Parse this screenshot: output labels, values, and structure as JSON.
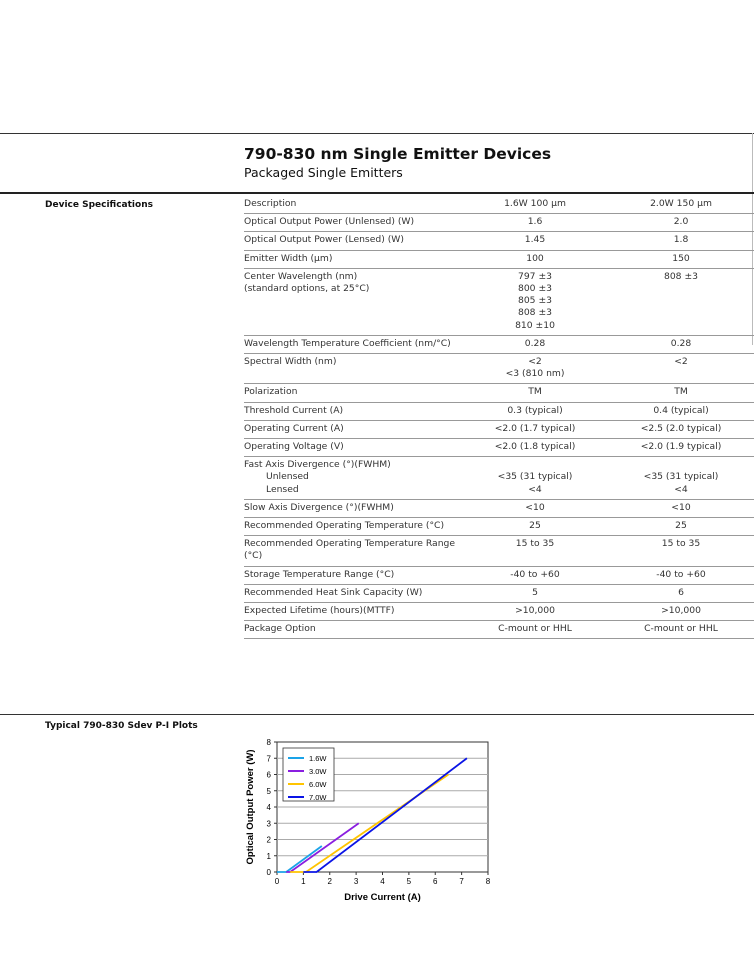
{
  "header": {
    "title": "790-830 nm Single Emitter Devices",
    "subtitle": "Packaged Single Emitters"
  },
  "specs": {
    "section_label": "Device Specifications",
    "rows": [
      {
        "label": [
          "Description"
        ],
        "v1": [
          "1.6W 100 µm"
        ],
        "v2": [
          "2.0W 150 µm"
        ]
      },
      {
        "label": [
          "Optical Output Power (Unlensed) (W)"
        ],
        "v1": [
          "1.6"
        ],
        "v2": [
          "2.0"
        ]
      },
      {
        "label": [
          "Optical Output Power (Lensed) (W)"
        ],
        "v1": [
          "1.45"
        ],
        "v2": [
          "1.8"
        ]
      },
      {
        "label": [
          "Emitter Width (µm)"
        ],
        "v1": [
          "100"
        ],
        "v2": [
          "150"
        ]
      },
      {
        "label": [
          "Center Wavelength (nm)",
          "(standard options, at 25°C)"
        ],
        "v1": [
          "797 ±3",
          "800 ±3",
          "805 ±3",
          "808 ±3",
          "810 ±10"
        ],
        "v2": [
          "808 ±3"
        ]
      },
      {
        "label": [
          "Wavelength Temperature Coefficient (nm/°C)"
        ],
        "v1": [
          "0.28"
        ],
        "v2": [
          "0.28"
        ]
      },
      {
        "label": [
          "Spectral Width (nm)"
        ],
        "v1": [
          "<2",
          "<3 (810 nm)"
        ],
        "v2": [
          "<2"
        ]
      },
      {
        "label": [
          "Polarization"
        ],
        "v1": [
          "TM"
        ],
        "v2": [
          "TM"
        ]
      },
      {
        "label": [
          "Threshold Current (A)"
        ],
        "v1": [
          "0.3 (typical)"
        ],
        "v2": [
          "0.4 (typical)"
        ]
      },
      {
        "label": [
          "Operating Current (A)"
        ],
        "v1": [
          "<2.0 (1.7 typical)"
        ],
        "v2": [
          "<2.5 (2.0 typical)"
        ]
      },
      {
        "label": [
          "Operating Voltage (V)"
        ],
        "v1": [
          "<2.0 (1.8 typical)"
        ],
        "v2": [
          "<2.0 (1.9 typical)"
        ]
      },
      {
        "label": [
          "Fast Axis Divergence (°)(FWHM)",
          "Unlensed",
          "Lensed"
        ],
        "v1": [
          "",
          "<35 (31 typical)",
          "<4"
        ],
        "v2": [
          "",
          "<35 (31 typical)",
          "<4"
        ]
      },
      {
        "label": [
          "Slow Axis Divergence (°)(FWHM)"
        ],
        "v1": [
          "<10"
        ],
        "v2": [
          "<10"
        ]
      },
      {
        "label": [
          "Recommended Operating Temperature (°C)"
        ],
        "v1": [
          "25"
        ],
        "v2": [
          "25"
        ]
      },
      {
        "label": [
          "Recommended Operating Temperature Range (°C)"
        ],
        "v1": [
          "15 to 35"
        ],
        "v2": [
          "15 to 35"
        ]
      },
      {
        "label": [
          "Storage Temperature Range (°C)"
        ],
        "v1": [
          "-40 to +60"
        ],
        "v2": [
          "-40 to +60"
        ]
      },
      {
        "label": [
          "Recommended Heat Sink Capacity (W)"
        ],
        "v1": [
          "5"
        ],
        "v2": [
          "6"
        ]
      },
      {
        "label": [
          "Expected Lifetime (hours)(MTTF)"
        ],
        "v1": [
          ">10,000"
        ],
        "v2": [
          ">10,000"
        ]
      },
      {
        "label": [
          "Package Option"
        ],
        "v1": [
          "C-mount or HHL"
        ],
        "v2": [
          "C-mount or HHL"
        ]
      }
    ]
  },
  "plots": {
    "section_label": "Typical 790-830 Sdev P-I Plots"
  },
  "chart_data": {
    "type": "line",
    "title": "",
    "xlabel": "Drive Current (A)",
    "ylabel": "Optical Output Power (W)",
    "xlim": [
      0,
      8
    ],
    "ylim": [
      0,
      8
    ],
    "xticks": [
      "0",
      "1",
      "2",
      "3",
      "4",
      "5",
      "6",
      "7",
      "8"
    ],
    "yticks": [
      "0",
      "1",
      "2",
      "3",
      "4",
      "5",
      "6",
      "7",
      "8"
    ],
    "grid": "horizontal",
    "legend_placement": "top-left",
    "series": [
      {
        "name": "1.6W",
        "color": "#1aa3e8",
        "points": [
          [
            0,
            0
          ],
          [
            0.35,
            0
          ],
          [
            1.7,
            1.6
          ]
        ]
      },
      {
        "name": "3.0W",
        "color": "#8a1ee0",
        "points": [
          [
            0.35,
            0
          ],
          [
            0.5,
            0
          ],
          [
            3.1,
            3.0
          ]
        ]
      },
      {
        "name": "6.0W",
        "color": "#ffc400",
        "points": [
          [
            0.5,
            0
          ],
          [
            1.1,
            0
          ],
          [
            6.5,
            6.0
          ]
        ]
      },
      {
        "name": "7.0W",
        "color": "#0a14e6",
        "points": [
          [
            1.0,
            0
          ],
          [
            1.5,
            0
          ],
          [
            7.2,
            7.0
          ]
        ]
      }
    ]
  }
}
